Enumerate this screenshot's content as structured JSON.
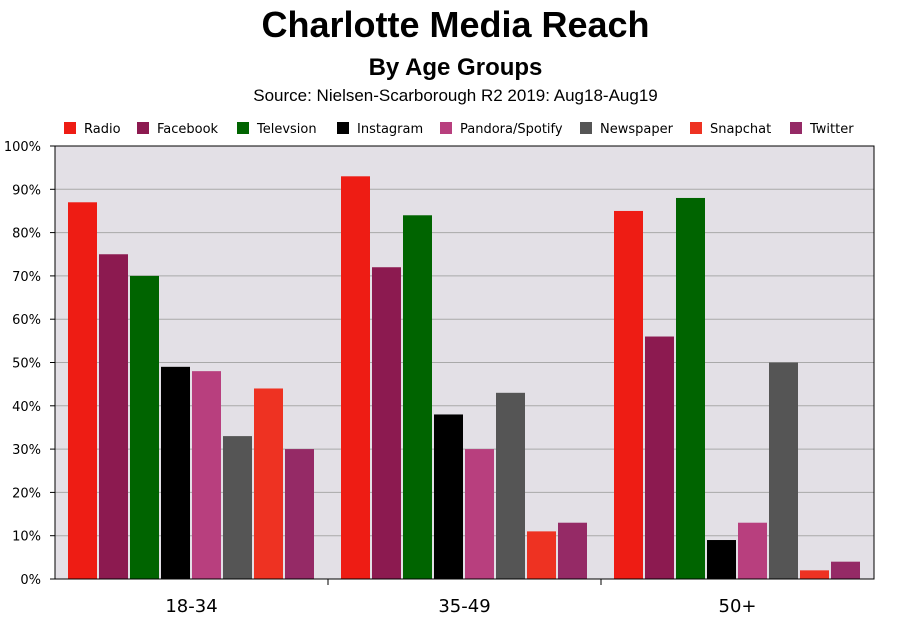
{
  "chart_data": {
    "type": "bar",
    "title": "Charlotte Media Reach",
    "subtitle": "By Age Groups",
    "source": "Source: Nielsen-Scarborough R2 2019: Aug18-Aug19",
    "categories": [
      "18-34",
      "35-49",
      "50+"
    ],
    "ylim": [
      0,
      100
    ],
    "yticks": [
      "0%",
      "10%",
      "20%",
      "30%",
      "40%",
      "50%",
      "60%",
      "70%",
      "80%",
      "90%",
      "100%"
    ],
    "grid": true,
    "legend_position": "top",
    "plot_background": "#e3e0e6",
    "series": [
      {
        "name": "Radio",
        "color": "#ee1c14",
        "values": [
          87,
          93,
          85
        ]
      },
      {
        "name": "Facebook",
        "color": "#8c1a50",
        "values": [
          75,
          72,
          56
        ]
      },
      {
        "name": "Televsion",
        "color": "#006400",
        "values": [
          70,
          84,
          88
        ]
      },
      {
        "name": "Instagram",
        "color": "#000000",
        "values": [
          49,
          38,
          9
        ]
      },
      {
        "name": "Pandora/Spotify",
        "color": "#b83f7e",
        "values": [
          48,
          30,
          13
        ]
      },
      {
        "name": "Newspaper",
        "color": "#555555",
        "values": [
          33,
          43,
          50
        ]
      },
      {
        "name": "Snapchat",
        "color": "#ee3222",
        "values": [
          44,
          11,
          2
        ]
      },
      {
        "name": "Twitter",
        "color": "#952a66",
        "values": [
          30,
          13,
          4
        ]
      }
    ]
  }
}
